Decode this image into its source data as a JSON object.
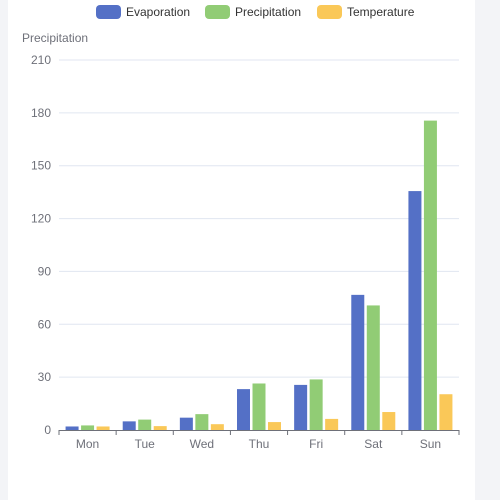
{
  "chart_data": {
    "type": "bar",
    "categories": [
      "Mon",
      "Tue",
      "Wed",
      "Thu",
      "Fri",
      "Sat",
      "Sun"
    ],
    "series": [
      {
        "name": "Evaporation",
        "color": "#5470c6",
        "values": [
          2.0,
          4.9,
          7.0,
          23.2,
          25.6,
          76.7,
          135.6
        ]
      },
      {
        "name": "Precipitation",
        "color": "#91cc75",
        "values": [
          2.6,
          5.9,
          9.0,
          26.4,
          28.7,
          70.7,
          175.6
        ]
      },
      {
        "name": "Temperature",
        "color": "#fac858",
        "values": [
          2.0,
          2.2,
          3.3,
          4.5,
          6.3,
          10.2,
          20.3
        ]
      }
    ],
    "ylabel": "Precipitation",
    "ylim": [
      0,
      210
    ],
    "yticks": [
      0,
      30,
      60,
      90,
      120,
      150,
      180,
      210
    ],
    "grid": true,
    "legend_position": "top-center"
  }
}
